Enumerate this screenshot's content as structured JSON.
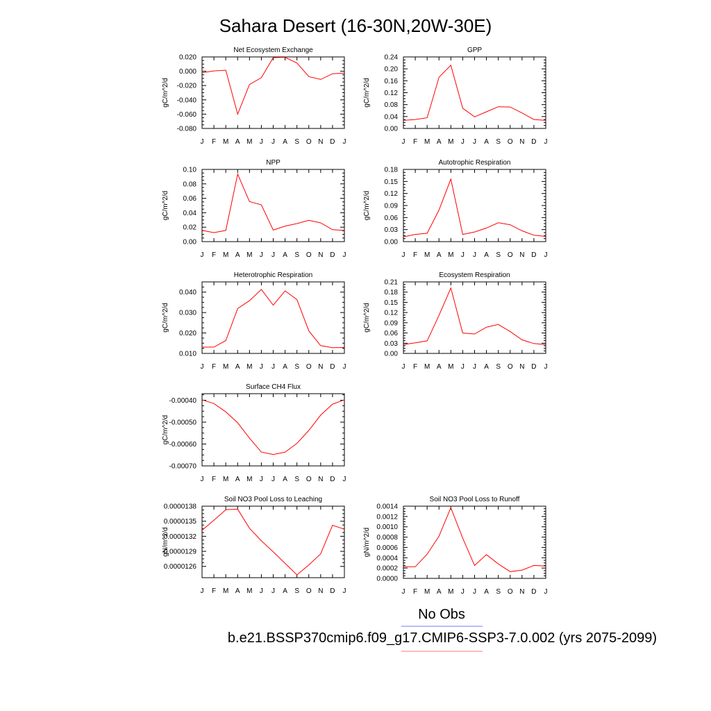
{
  "title": "Sahara Desert (16-30N,20W-30E)",
  "legend": {
    "obs_label": "No Obs",
    "obs_color": "#7777ff",
    "model_label": "b.e21.BSSP370cmip6.f09_g17.CMIP6-SSP3-7.0.002 (yrs 2075-2099)",
    "model_color": "#ff7777"
  },
  "line_color": "#ff0000",
  "chart_data": [
    {
      "type": "line",
      "title": "Net Ecosystem Exchange",
      "ylabel": "gC/m^2/d",
      "x": [
        "J",
        "F",
        "M",
        "A",
        "M",
        "J",
        "J",
        "A",
        "S",
        "O",
        "N",
        "D",
        "J"
      ],
      "ylim": [
        -0.08,
        0.02
      ],
      "yticks": [
        "0.020",
        "0.000",
        "-0.020",
        "-0.040",
        "-0.060",
        "-0.080"
      ],
      "ytick_values": [
        0.02,
        0.0,
        -0.02,
        -0.04,
        -0.06,
        -0.08
      ],
      "series": [
        {
          "values": [
            -0.002,
            0.0005,
            0.0015,
            -0.06,
            -0.0185,
            -0.009,
            0.019,
            0.0195,
            0.0115,
            -0.0075,
            -0.0115,
            -0.0035,
            -0.0025
          ]
        }
      ]
    },
    {
      "type": "line",
      "title": "GPP",
      "ylabel": "gC/m^2/d",
      "x": [
        "J",
        "F",
        "M",
        "A",
        "M",
        "J",
        "J",
        "A",
        "S",
        "O",
        "N",
        "D",
        "J"
      ],
      "ylim": [
        0,
        0.24
      ],
      "yticks": [
        "0.24",
        "0.20",
        "0.16",
        "0.12",
        "0.08",
        "0.04",
        "0.00"
      ],
      "ytick_values": [
        0.24,
        0.2,
        0.16,
        0.12,
        0.08,
        0.04,
        0.0
      ],
      "series": [
        {
          "values": [
            0.027,
            0.03,
            0.036,
            0.172,
            0.212,
            0.068,
            0.039,
            0.056,
            0.073,
            0.072,
            0.052,
            0.03,
            0.027
          ]
        }
      ]
    },
    {
      "type": "line",
      "title": "NPP",
      "ylabel": "gC/m^2/d",
      "x": [
        "J",
        "F",
        "M",
        "A",
        "M",
        "J",
        "J",
        "A",
        "S",
        "O",
        "N",
        "D",
        "J"
      ],
      "ylim": [
        0,
        0.1
      ],
      "yticks": [
        "0.10",
        "0.08",
        "0.06",
        "0.04",
        "0.02",
        "0.00"
      ],
      "ytick_values": [
        0.1,
        0.08,
        0.06,
        0.04,
        0.02,
        0.0
      ],
      "series": [
        {
          "values": [
            0.0155,
            0.0125,
            0.0155,
            0.0935,
            0.0555,
            0.051,
            0.016,
            0.0215,
            0.025,
            0.0295,
            0.026,
            0.0165,
            0.0155
          ]
        }
      ]
    },
    {
      "type": "line",
      "title": "Autotrophic Respiration",
      "ylabel": "gC/m^2/d",
      "x": [
        "J",
        "F",
        "M",
        "A",
        "M",
        "J",
        "J",
        "A",
        "S",
        "O",
        "N",
        "D",
        "J"
      ],
      "ylim": [
        0,
        0.18
      ],
      "yticks": [
        "0.18",
        "0.15",
        "0.12",
        "0.09",
        "0.06",
        "0.03",
        "0.00"
      ],
      "ytick_values": [
        0.18,
        0.15,
        0.12,
        0.09,
        0.06,
        0.03,
        0.0
      ],
      "series": [
        {
          "values": [
            0.012,
            0.018,
            0.021,
            0.079,
            0.156,
            0.018,
            0.024,
            0.034,
            0.047,
            0.042,
            0.027,
            0.016,
            0.013
          ]
        }
      ]
    },
    {
      "type": "line",
      "title": "Heterotrophic Respiration",
      "ylabel": "gC/m^2/d",
      "x": [
        "J",
        "F",
        "M",
        "A",
        "M",
        "J",
        "J",
        "A",
        "S",
        "O",
        "N",
        "D",
        "J"
      ],
      "ylim": [
        0.01,
        0.045
      ],
      "yticks": [
        "0.040",
        "0.030",
        "0.020",
        "0.010"
      ],
      "ytick_values": [
        0.04,
        0.03,
        0.02,
        0.01
      ],
      "series": [
        {
          "values": [
            0.0131,
            0.0131,
            0.0163,
            0.032,
            0.0358,
            0.0413,
            0.0336,
            0.0406,
            0.0363,
            0.021,
            0.0138,
            0.0128,
            0.0129
          ]
        }
      ]
    },
    {
      "type": "line",
      "title": "Ecosystem Respiration",
      "ylabel": "gC/m^2/d",
      "x": [
        "J",
        "F",
        "M",
        "A",
        "M",
        "J",
        "J",
        "A",
        "S",
        "O",
        "N",
        "D",
        "J"
      ],
      "ylim": [
        0,
        0.21
      ],
      "yticks": [
        "0.21",
        "0.18",
        "0.15",
        "0.12",
        "0.09",
        "0.06",
        "0.03",
        "0.00"
      ],
      "ytick_values": [
        0.21,
        0.18,
        0.15,
        0.12,
        0.09,
        0.06,
        0.03,
        0.0
      ],
      "series": [
        {
          "values": [
            0.026,
            0.031,
            0.037,
            0.112,
            0.192,
            0.06,
            0.057,
            0.077,
            0.085,
            0.064,
            0.04,
            0.029,
            0.026
          ]
        }
      ]
    },
    {
      "type": "line",
      "title": "Surface CH4 Flux",
      "ylabel": "gC/m^2/d",
      "x": [
        "J",
        "F",
        "M",
        "A",
        "M",
        "J",
        "J",
        "A",
        "S",
        "O",
        "N",
        "D",
        "J"
      ],
      "ylim": [
        -0.0007,
        -0.00037
      ],
      "yticks": [
        "-0.00040",
        "-0.00050",
        "-0.00060",
        "-0.00070"
      ],
      "ytick_values": [
        -0.0004,
        -0.0005,
        -0.0006,
        -0.0007
      ],
      "series": [
        {
          "values": [
            -0.000398,
            -0.000415,
            -0.000453,
            -0.000503,
            -0.000573,
            -0.000637,
            -0.000648,
            -0.000637,
            -0.000597,
            -0.000538,
            -0.000468,
            -0.000418,
            -0.000398
          ]
        }
      ]
    },
    {
      "type": "line",
      "title": "Soil NO3 Pool Loss to Leaching",
      "ylabel": "gN/m^2/d",
      "x": [
        "J",
        "F",
        "M",
        "A",
        "M",
        "J",
        "J",
        "A",
        "S",
        "O",
        "N",
        "D",
        "J"
      ],
      "ylim": [
        1.2375e-05,
        1.38e-05
      ],
      "yticks": [
        "0.0000138",
        "0.0000135",
        "0.0000132",
        "0.0000129",
        "0.0000126"
      ],
      "ytick_values": [
        1.38e-05,
        1.35e-05,
        1.32e-05,
        1.29e-05,
        1.26e-05
      ],
      "series": [
        {
          "values": [
            1.332e-05,
            1.352e-05,
            1.373e-05,
            1.374e-05,
            1.336e-05,
            1.311e-05,
            1.289e-05,
            1.266e-05,
            1.243e-05,
            1.263e-05,
            1.285e-05,
            1.342e-05,
            1.334e-05
          ]
        }
      ]
    },
    {
      "type": "line",
      "title": "Soil NO3 Pool Loss to Runoff",
      "ylabel": "gN/m^2/d",
      "x": [
        "J",
        "F",
        "M",
        "A",
        "M",
        "J",
        "J",
        "A",
        "S",
        "O",
        "N",
        "D",
        "J"
      ],
      "ylim": [
        0,
        0.0014
      ],
      "yticks": [
        "0.0014",
        "0.0012",
        "0.0010",
        "0.0008",
        "0.0006",
        "0.0004",
        "0.0002",
        "0.0000"
      ],
      "ytick_values": [
        0.0014,
        0.0012,
        0.001,
        0.0008,
        0.0006,
        0.0004,
        0.0002,
        0.0
      ],
      "series": [
        {
          "values": [
            0.000225,
            0.000225,
            0.00047,
            0.00082,
            0.00137,
            0.00078,
            0.00025,
            0.00046,
            0.00028,
            0.00013,
            0.00016,
            0.00025,
            0.00024
          ]
        }
      ]
    }
  ]
}
